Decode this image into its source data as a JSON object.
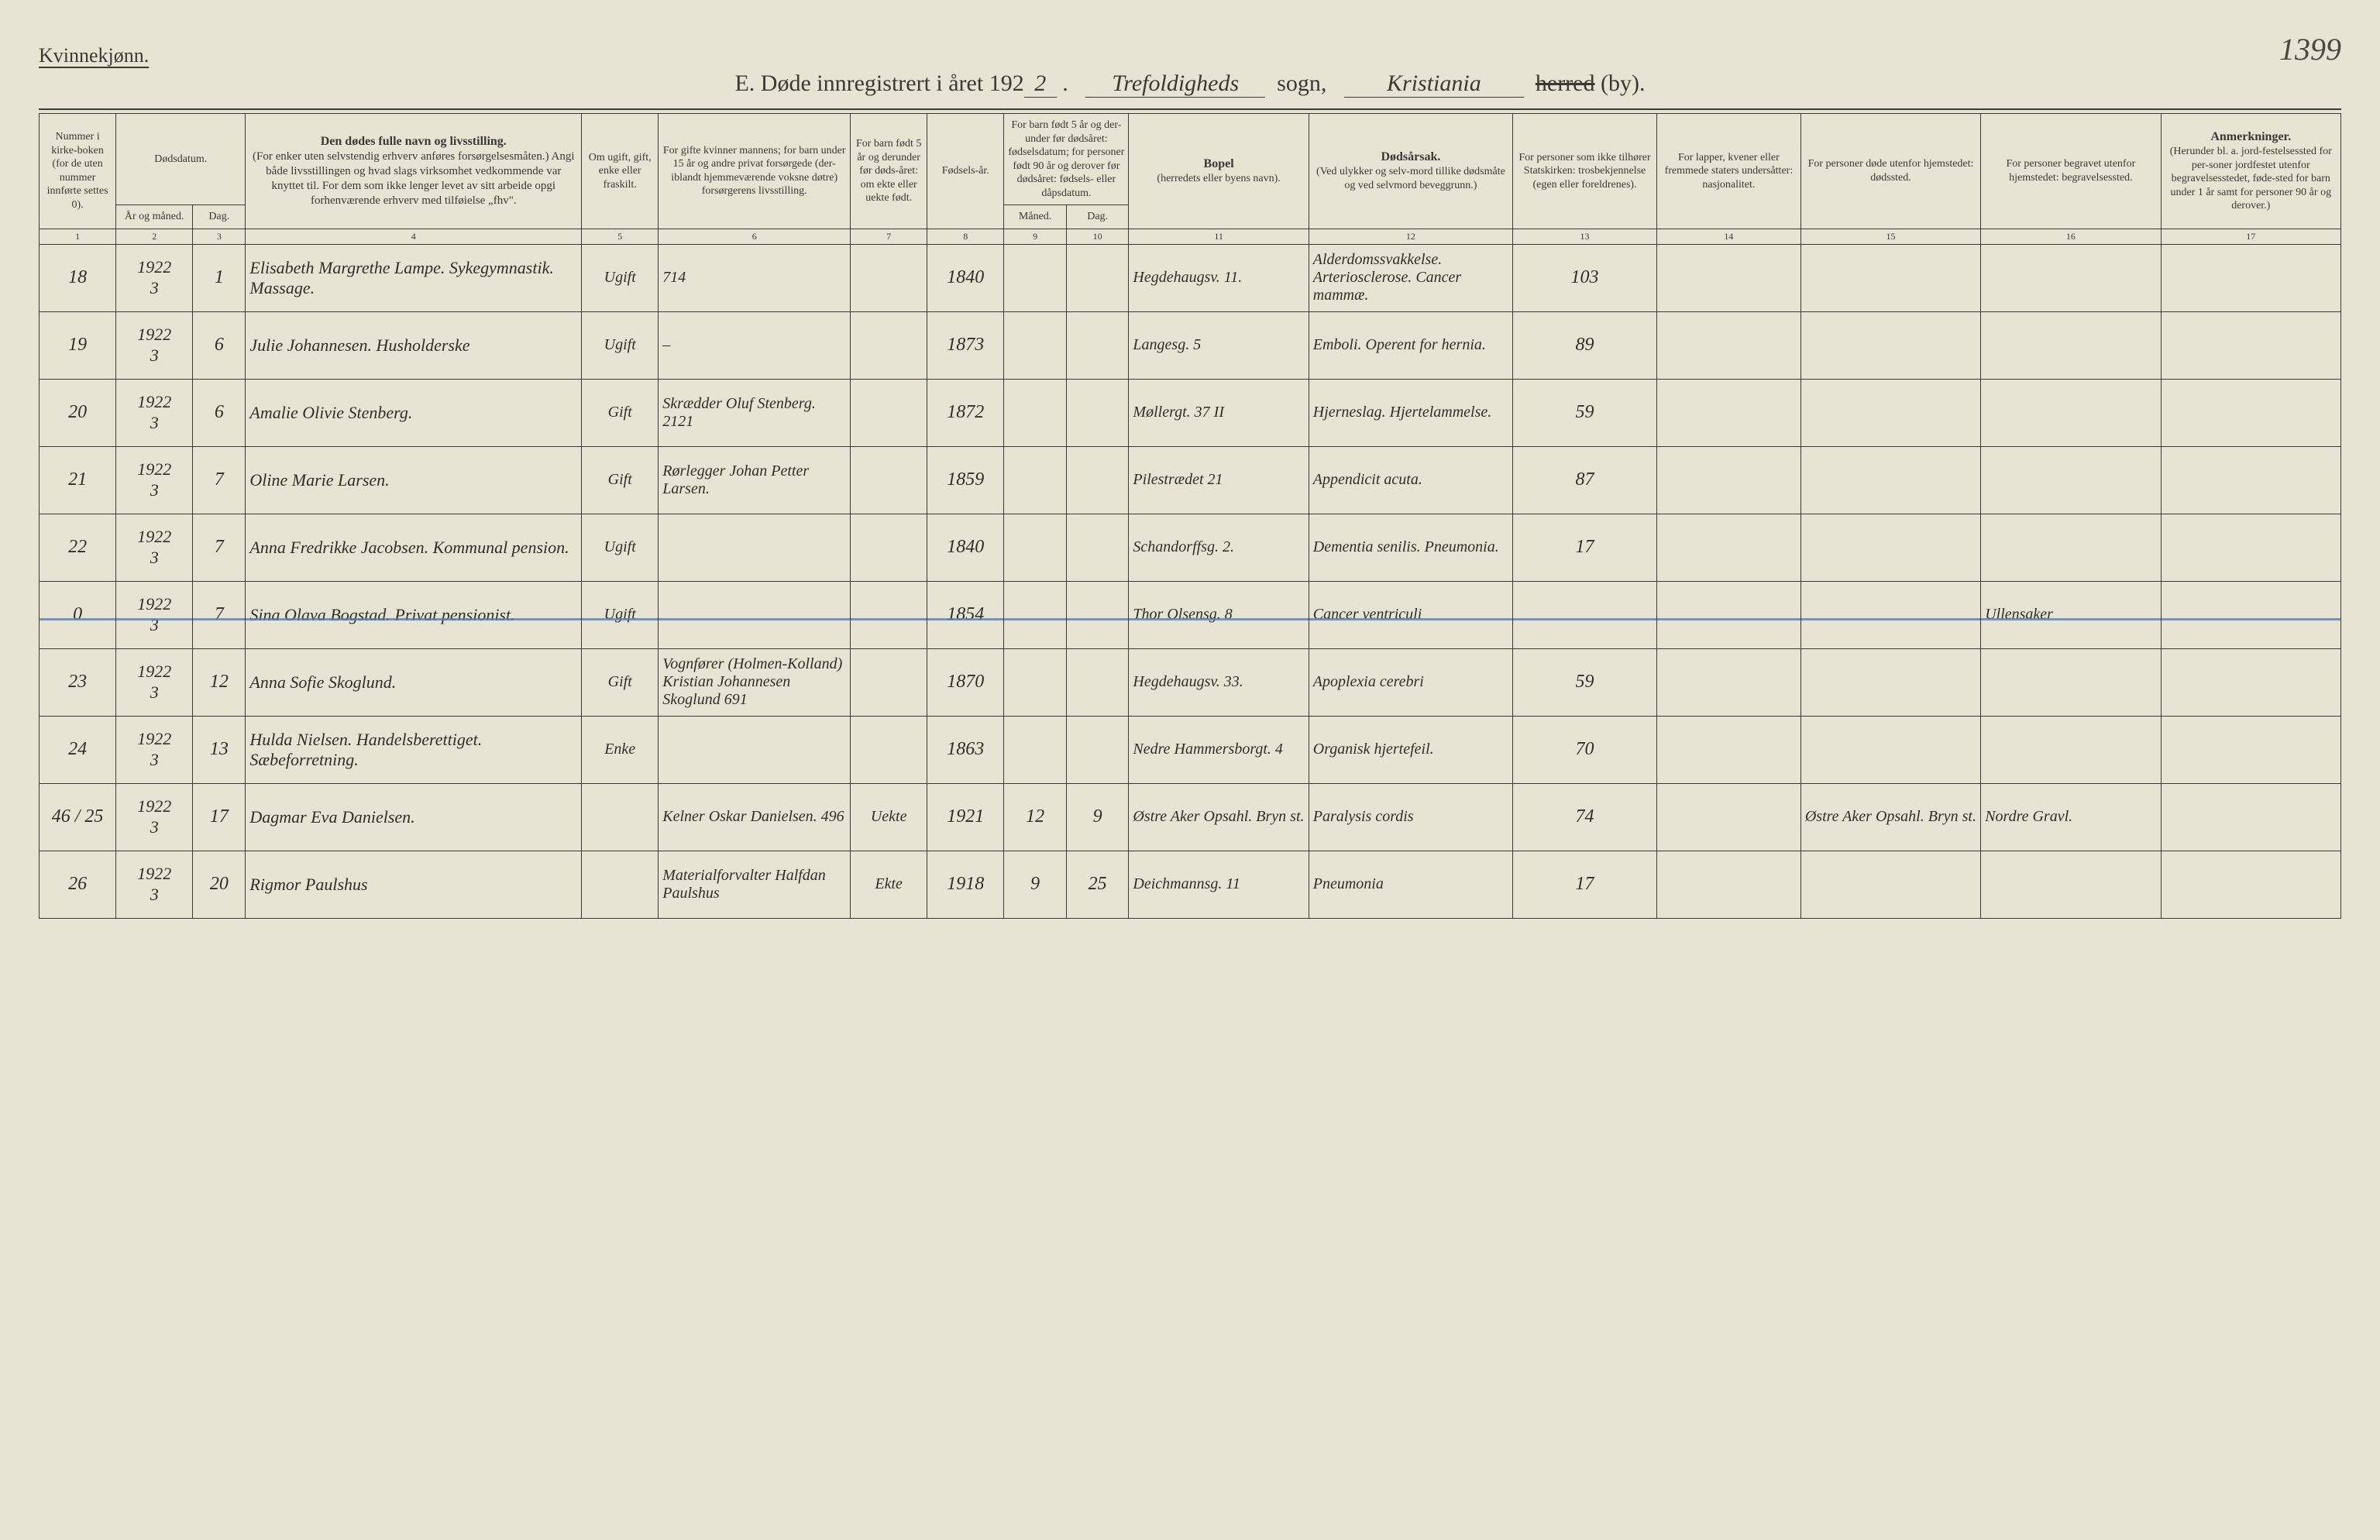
{
  "header": {
    "gender": "Kvinnekjønn.",
    "page_number": "1399",
    "title_prefix": "E.  Døde innregistrert i året 192",
    "year_suffix": "2",
    "parish": "Trefoldigheds",
    "sogn_word": "sogn,",
    "district": "Kristiania",
    "herred_word": "herred",
    "by_word": "(by)."
  },
  "columns": {
    "h1": "Nummer i kirke-boken (for de uten nummer innførte settes 0).",
    "h2_top": "Dødsdatum.",
    "h2a": "År og måned.",
    "h2b": "Dag.",
    "h4": "Den dødes fulle navn og livsstilling.",
    "h4_sub": "(For enker uten selvstendig erhverv anføres forsørgelsesmåten.) Angi både livsstillingen og hvad slags virksomhet vedkommende var knyttet til. For dem som ikke lenger levet av sitt arbeide opgi forhenværende erhverv med tilføielse „fhv\".",
    "h5": "Om ugift, gift, enke eller fraskilt.",
    "h6": "For gifte kvinner mannens; for barn under 15 år og andre privat forsørgede (der-iblandt hjemmeværende voksne døtre) forsørgerens livsstilling.",
    "h7": "For barn født 5 år og derunder før døds-året: om ekte eller uekte født.",
    "h8": "Fødsels-år.",
    "h9_top": "For barn født 5 år og der-under før dødsåret: fødselsdatum; for personer født 90 år og derover før dødsåret: fødsels- eller dåpsdatum.",
    "h9a": "Måned.",
    "h9b": "Dag.",
    "h11": "Bopel",
    "h11_sub": "(herredets eller byens navn).",
    "h12": "Dødsårsak.",
    "h12_sub": "(Ved ulykker og selv-mord tillike dødsmåte og ved selvmord beveggrunn.)",
    "h13": "For personer som ikke tilhører Statskirken: trosbekjennelse (egen eller foreldrenes).",
    "h14": "For lapper, kvener eller fremmede staters undersåtter: nasjonalitet.",
    "h15": "For personer døde utenfor hjemstedet: dødssted.",
    "h16": "For personer begravet utenfor hjemstedet: begravelsessted.",
    "h17_bold": "Anmerkninger.",
    "h17_sub": "(Herunder bl. a. jord-festelsessted for per-soner jordfestet utenfor begravelsesstedet, føde-sted for barn under 1 år samt for personer 90 år og derover.)",
    "nums": [
      "1",
      "2",
      "3",
      "4",
      "5",
      "6",
      "7",
      "8",
      "9",
      "10",
      "11",
      "12",
      "13",
      "14",
      "15",
      "16",
      "17"
    ]
  },
  "rows": [
    {
      "num": "18",
      "year": "1922",
      "month": "3",
      "day": "1",
      "name": "Elisabeth Margrethe Lampe. Sykegymnastik. Massage.",
      "civil": "Ugift",
      "spouse": "714",
      "ekte": "",
      "birth": "1840",
      "bm": "",
      "bd": "",
      "residence": "Hegdehaugsv. 11.",
      "cause": "Alderdomssvakkelse. Arteriosclerose. Cancer mammæ.",
      "c13": "103",
      "c14": "",
      "c15": "",
      "c16": "",
      "c17": "",
      "blue": false
    },
    {
      "num": "19",
      "year": "1922",
      "month": "3",
      "day": "6",
      "name": "Julie Johannesen. Husholderske",
      "civil": "Ugift",
      "spouse": "–",
      "ekte": "",
      "birth": "1873",
      "bm": "",
      "bd": "",
      "residence": "Langesg. 5",
      "cause": "Emboli. Operent for hernia.",
      "c13": "89",
      "c14": "",
      "c15": "",
      "c16": "",
      "c17": "",
      "blue": false
    },
    {
      "num": "20",
      "year": "1922",
      "month": "3",
      "day": "6",
      "name": "Amalie Olivie Stenberg.",
      "civil": "Gift",
      "spouse": "Skrædder Oluf Stenberg. 2121",
      "ekte": "",
      "birth": "1872",
      "bm": "",
      "bd": "",
      "residence": "Møllergt. 37 II",
      "cause": "Hjerneslag. Hjertelammelse.",
      "c13": "59",
      "c14": "",
      "c15": "",
      "c16": "",
      "c17": "",
      "blue": false
    },
    {
      "num": "21",
      "year": "1922",
      "month": "3",
      "day": "7",
      "name": "Oline Marie Larsen.",
      "civil": "Gift",
      "spouse": "Rørlegger Johan Petter Larsen.",
      "ekte": "",
      "birth": "1859",
      "bm": "",
      "bd": "",
      "residence": "Pilestrædet 21",
      "cause": "Appendicit acuta.",
      "c13": "87",
      "c14": "",
      "c15": "",
      "c16": "",
      "c17": "",
      "blue": false
    },
    {
      "num": "22",
      "year": "1922",
      "month": "3",
      "day": "7",
      "name": "Anna Fredrikke Jacobsen. Kommunal pension.",
      "civil": "Ugift",
      "spouse": "",
      "ekte": "",
      "birth": "1840",
      "bm": "",
      "bd": "",
      "residence": "Schandorffsg. 2.",
      "cause": "Dementia senilis. Pneumonia.",
      "c13": "17",
      "c14": "",
      "c15": "",
      "c16": "",
      "c17": "",
      "blue": false
    },
    {
      "num": "0",
      "year": "1922",
      "month": "3",
      "day": "7",
      "name": "Sina Olava Bogstad. Privat pensionist.",
      "civil": "Ugift",
      "spouse": "",
      "ekte": "",
      "birth": "1854",
      "bm": "",
      "bd": "",
      "residence": "Thor Olsensg. 8",
      "cause": "Cancer ventriculi",
      "c13": "",
      "c14": "",
      "c15": "",
      "c16": "Ullensaker",
      "c17": "",
      "blue": true
    },
    {
      "num": "23",
      "year": "1922",
      "month": "3",
      "day": "12",
      "name": "Anna Sofie Skoglund.",
      "civil": "Gift",
      "spouse": "Vognfører (Holmen-Kolland) Kristian Johannesen Skoglund 691",
      "ekte": "",
      "birth": "1870",
      "bm": "",
      "bd": "",
      "residence": "Hegdehaugsv. 33.",
      "cause": "Apoplexia cerebri",
      "c13": "59",
      "c14": "",
      "c15": "",
      "c16": "",
      "c17": "",
      "blue": false
    },
    {
      "num": "24",
      "year": "1922",
      "month": "3",
      "day": "13",
      "name": "Hulda Nielsen. Handelsberettiget. Sæbeforretning.",
      "civil": "Enke",
      "spouse": "",
      "ekte": "",
      "birth": "1863",
      "bm": "",
      "bd": "",
      "residence": "Nedre Hammersborgt. 4",
      "cause": "Organisk hjertefeil.",
      "c13": "70",
      "c14": "",
      "c15": "",
      "c16": "",
      "c17": "",
      "blue": false
    },
    {
      "num": "46 / 25",
      "year": "1922",
      "month": "3",
      "day": "17",
      "name": "Dagmar Eva Danielsen.",
      "civil": "",
      "spouse": "Kelner Oskar Danielsen. 496",
      "ekte": "Uekte",
      "birth": "1921",
      "bm": "12",
      "bd": "9",
      "residence": "Østre Aker Opsahl. Bryn st.",
      "cause": "Paralysis cordis",
      "c13": "74",
      "c14": "",
      "c15": "Østre Aker Opsahl. Bryn st.",
      "c16": "Nordre Gravl.",
      "c17": "",
      "blue": false
    },
    {
      "num": "26",
      "year": "1922",
      "month": "3",
      "day": "20",
      "name": "Rigmor Paulshus",
      "civil": "",
      "spouse": "Materialforvalter Halfdan Paulshus",
      "ekte": "Ekte",
      "birth": "1918",
      "bm": "9",
      "bd": "25",
      "residence": "Deichmannsg. 11",
      "cause": "Pneumonia",
      "c13": "17",
      "c14": "",
      "c15": "",
      "c16": "",
      "c17": "",
      "blue": false
    }
  ]
}
